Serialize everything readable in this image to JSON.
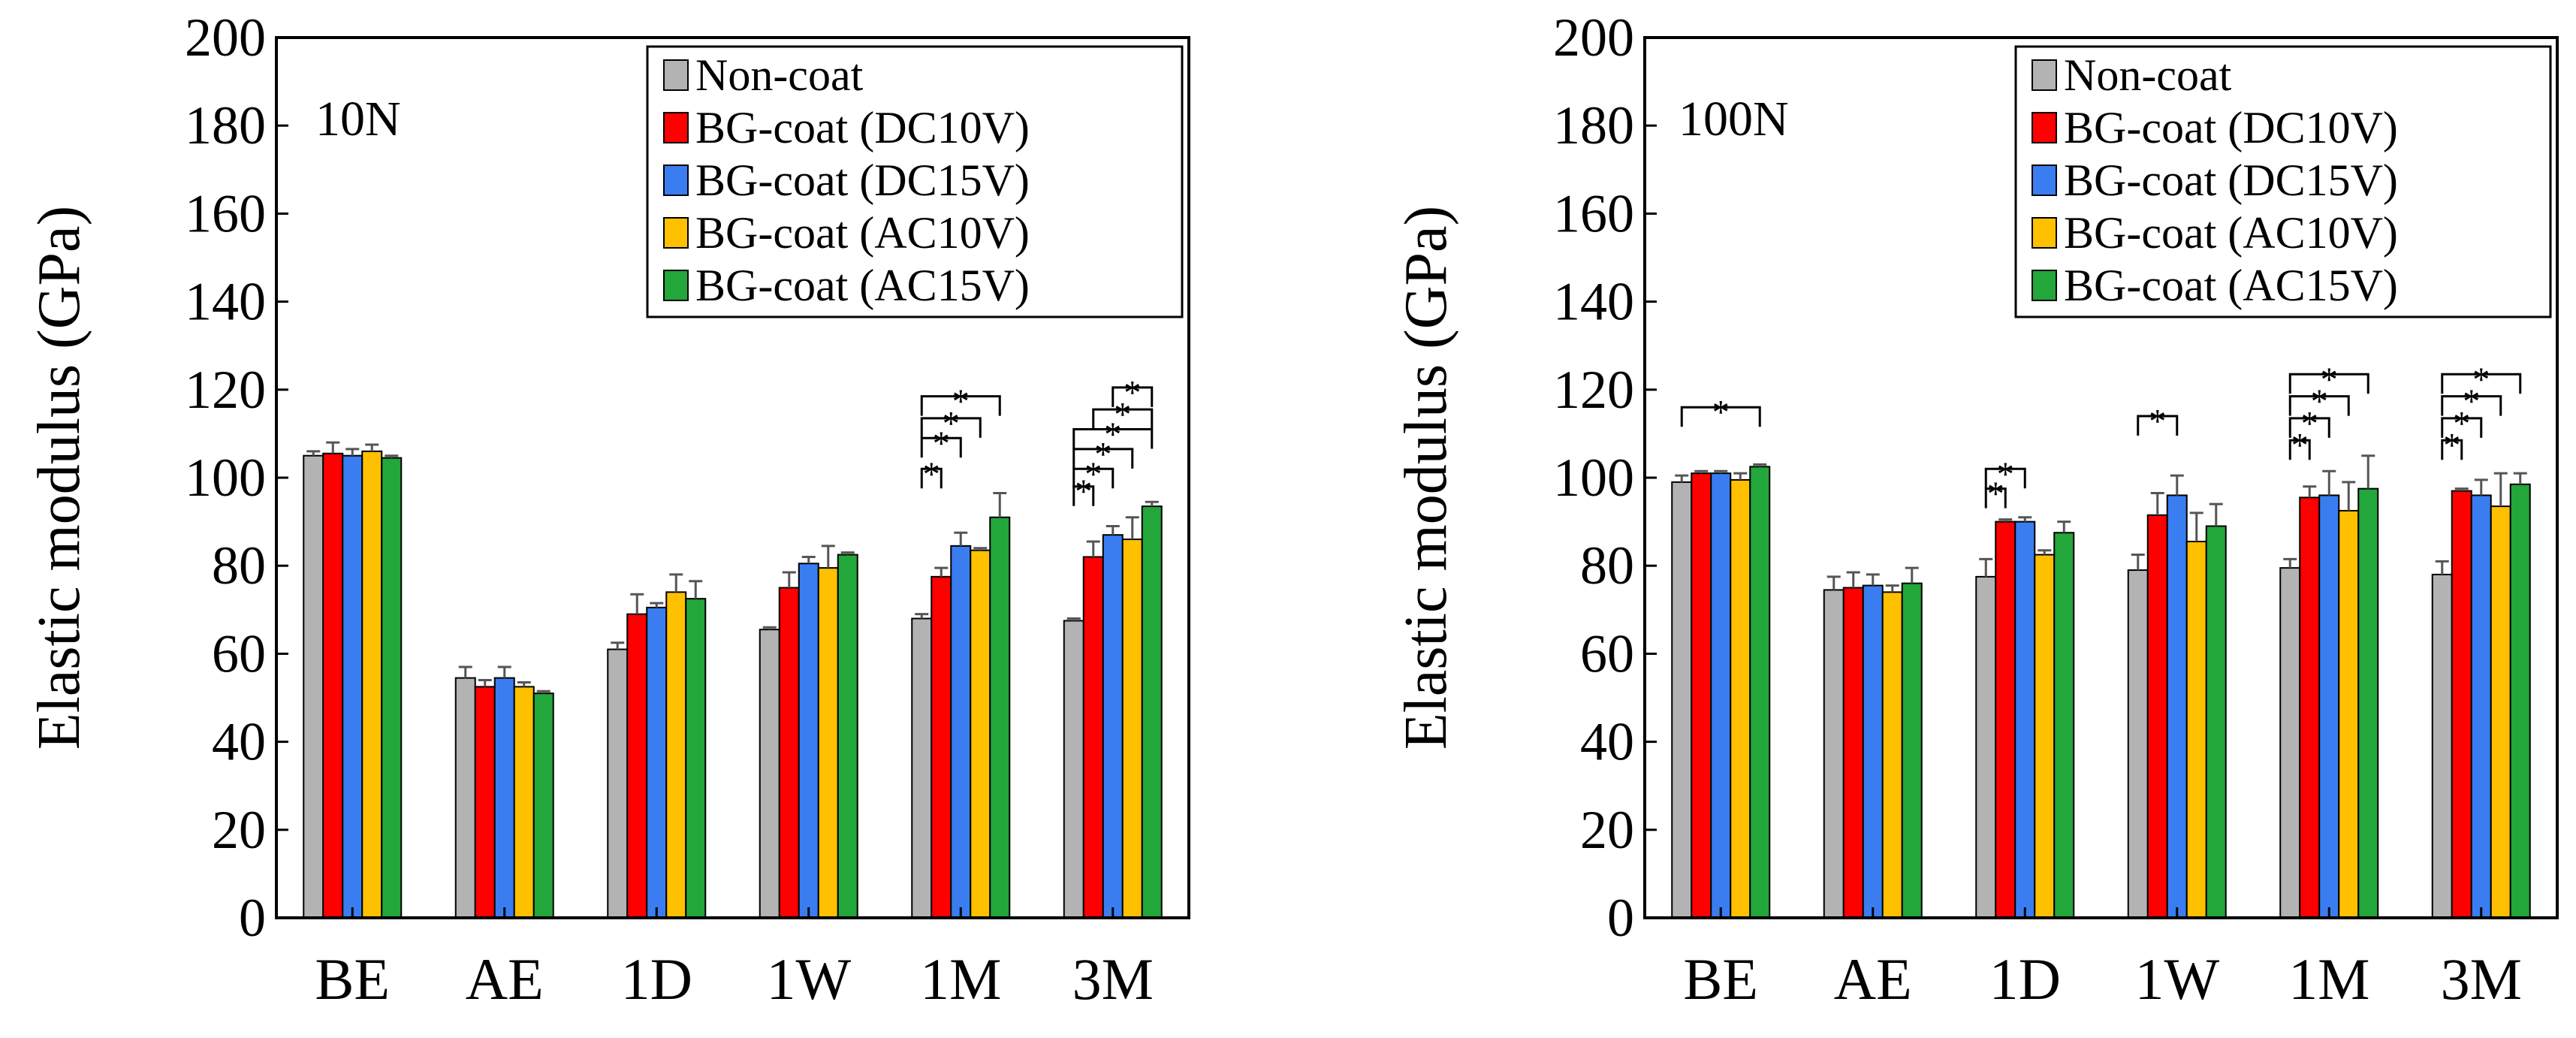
{
  "chart_data": [
    {
      "type": "bar",
      "annotation": "10N",
      "ylabel": "Elastic modulus (GPa)",
      "xlabel": "",
      "ylim": [
        0,
        200
      ],
      "yticks": [
        "0",
        "20",
        "40",
        "60",
        "80",
        "100",
        "120",
        "140",
        "160",
        "180",
        "200"
      ],
      "categories": [
        "BE",
        "AE",
        "1D",
        "1W",
        "1M",
        "3M"
      ],
      "series": [
        {
          "name": "Non-coat",
          "color": "#b3b3b3",
          "values": [
            105,
            54.5,
            61,
            65.5,
            68,
            67.5
          ],
          "errors": [
            1,
            2.5,
            1.5,
            0.5,
            1,
            0.5
          ]
        },
        {
          "name": "BG-coat (DC10V)",
          "color": "#ff0000",
          "values": [
            105.5,
            52.5,
            69,
            75,
            77.5,
            82
          ],
          "errors": [
            2.5,
            1.5,
            4.5,
            3.5,
            2,
            3.5
          ]
        },
        {
          "name": "BG-coat (DC15V)",
          "color": "#3a7df0",
          "values": [
            105,
            54.5,
            70.5,
            80.5,
            84.5,
            87
          ],
          "errors": [
            1.5,
            2.5,
            1,
            1.5,
            3,
            2
          ]
        },
        {
          "name": "BG-coat (AC10V)",
          "color": "#ffc000",
          "values": [
            106,
            52.5,
            74,
            79.5,
            83.5,
            86
          ],
          "errors": [
            1.5,
            1,
            4,
            5,
            0.5,
            5
          ]
        },
        {
          "name": "BG-coat (AC15V)",
          "color": "#23a63a",
          "values": [
            104.5,
            51,
            72.5,
            82.5,
            91,
            93.5
          ],
          "errors": [
            0.5,
            0.5,
            4,
            0.5,
            5.5,
            1
          ]
        }
      ],
      "significance": [
        {
          "category": 4,
          "from": 0,
          "to": 1,
          "y": 102,
          "label": "*"
        },
        {
          "category": 4,
          "from": 0,
          "to": 2,
          "y": 109,
          "label": "*"
        },
        {
          "category": 4,
          "from": 0,
          "to": 3,
          "y": 113.5,
          "label": "*"
        },
        {
          "category": 4,
          "from": 0,
          "to": 4,
          "y": 118.5,
          "label": "*"
        },
        {
          "category": 5,
          "from": 0,
          "to": 1,
          "y": 98,
          "label": "*"
        },
        {
          "category": 5,
          "from": 0,
          "to": 2,
          "y": 102,
          "label": "*"
        },
        {
          "category": 5,
          "from": 0,
          "to": 3,
          "y": 106.5,
          "label": "*"
        },
        {
          "category": 5,
          "from": 0,
          "to": 4,
          "y": 111,
          "label": "*"
        },
        {
          "category": 5,
          "from": 1,
          "to": 4,
          "y": 115.5,
          "label": "*"
        },
        {
          "category": 5,
          "from": 2,
          "to": 4,
          "y": 120.5,
          "label": "*"
        }
      ],
      "legend": {
        "position": "top-right"
      }
    },
    {
      "type": "bar",
      "annotation": "100N",
      "ylabel": "Elastic modulus (GPa)",
      "xlabel": "",
      "ylim": [
        0,
        200
      ],
      "yticks": [
        "0",
        "20",
        "40",
        "60",
        "80",
        "100",
        "120",
        "140",
        "160",
        "180",
        "200"
      ],
      "categories": [
        "BE",
        "AE",
        "1D",
        "1W",
        "1M",
        "3M"
      ],
      "series": [
        {
          "name": "Non-coat",
          "color": "#b3b3b3",
          "values": [
            99,
            74.5,
            77.5,
            79,
            79.5,
            78
          ],
          "errors": [
            1.5,
            3,
            4,
            3.5,
            2,
            3
          ]
        },
        {
          "name": "BG-coat (DC10V)",
          "color": "#ff0000",
          "values": [
            101,
            75,
            90,
            91.5,
            95.5,
            97
          ],
          "errors": [
            0.5,
            3.5,
            0.5,
            5,
            2.5,
            0.5
          ]
        },
        {
          "name": "BG-coat (DC15V)",
          "color": "#3a7df0",
          "values": [
            101,
            75.5,
            90,
            96,
            96,
            96
          ],
          "errors": [
            0.5,
            2.5,
            1,
            4.5,
            5.5,
            3.5
          ]
        },
        {
          "name": "BG-coat (AC10V)",
          "color": "#ffc000",
          "values": [
            99.5,
            74,
            82.5,
            85.5,
            92.5,
            93.5
          ],
          "errors": [
            1.5,
            1.5,
            1,
            6.5,
            6.5,
            7.5
          ]
        },
        {
          "name": "BG-coat (AC15V)",
          "color": "#23a63a",
          "values": [
            102.5,
            76,
            87.5,
            89,
            97.5,
            98.5
          ],
          "errors": [
            0.5,
            3.5,
            2.5,
            5,
            7.5,
            2.5
          ]
        }
      ],
      "significance": [
        {
          "category": 0,
          "from": 0,
          "to": 4,
          "y": 116,
          "label": "*"
        },
        {
          "category": 2,
          "from": 0,
          "to": 1,
          "y": 97.5,
          "label": "*"
        },
        {
          "category": 2,
          "from": 0,
          "to": 2,
          "y": 102,
          "label": "*"
        },
        {
          "category": 3,
          "from": 0,
          "to": 2,
          "y": 114,
          "label": "*"
        },
        {
          "category": 4,
          "from": 0,
          "to": 1,
          "y": 108.5,
          "label": "*"
        },
        {
          "category": 4,
          "from": 0,
          "to": 2,
          "y": 113.5,
          "label": "*"
        },
        {
          "category": 4,
          "from": 0,
          "to": 3,
          "y": 118.5,
          "label": "*"
        },
        {
          "category": 4,
          "from": 0,
          "to": 4,
          "y": 123.5,
          "label": "*"
        },
        {
          "category": 5,
          "from": 0,
          "to": 1,
          "y": 108.5,
          "label": "*"
        },
        {
          "category": 5,
          "from": 0,
          "to": 2,
          "y": 113.5,
          "label": "*"
        },
        {
          "category": 5,
          "from": 0,
          "to": 3,
          "y": 118.5,
          "label": "*"
        },
        {
          "category": 5,
          "from": 0,
          "to": 4,
          "y": 123.5,
          "label": "*"
        }
      ],
      "legend": {
        "position": "top-right"
      }
    }
  ]
}
